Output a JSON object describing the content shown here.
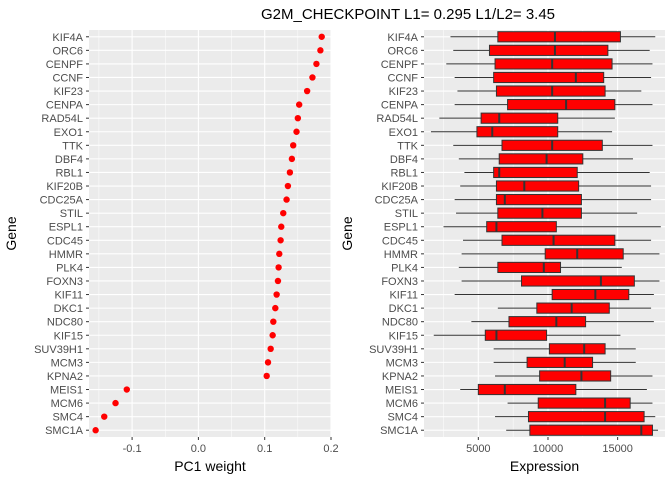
{
  "title": "G2M_CHECKPOINT L1= 0.295 L1/L2= 3.45",
  "colors": {
    "panel_bg": "#ebebeb",
    "grid_major": "#ffffff",
    "point": "#ff0000",
    "box_fill": "#ff0000",
    "box_line": "#333333"
  },
  "chart_data": [
    {
      "type": "scatter",
      "xlabel": "PC1 weight",
      "ylabel": "Gene",
      "xlim": [
        -0.165,
        0.2
      ],
      "xticks": [
        -0.1,
        0.0,
        0.1,
        0.2
      ],
      "xtick_labels": [
        "-0.1",
        "0.0",
        "0.1",
        "0.2"
      ],
      "grid": true,
      "categories": [
        "KIF4A",
        "ORC6",
        "CENPF",
        "CCNF",
        "KIF23",
        "CENPA",
        "RAD54L",
        "EXO1",
        "TTK",
        "DBF4",
        "RBL1",
        "KIF20B",
        "CDC25A",
        "STIL",
        "ESPL1",
        "CDC45",
        "HMMR",
        "PLK4",
        "FOXN3",
        "KIF11",
        "DKC1",
        "NDC80",
        "KIF15",
        "SUV39H1",
        "MCM3",
        "KPNA2",
        "MEIS1",
        "MCM6",
        "SMC4",
        "SMC1A"
      ],
      "values": [
        0.186,
        0.184,
        0.178,
        0.172,
        0.164,
        0.152,
        0.15,
        0.148,
        0.143,
        0.141,
        0.138,
        0.135,
        0.133,
        0.128,
        0.125,
        0.124,
        0.122,
        0.121,
        0.12,
        0.118,
        0.116,
        0.113,
        0.112,
        0.109,
        0.105,
        0.103,
        -0.108,
        -0.125,
        -0.142,
        -0.155
      ]
    },
    {
      "type": "box",
      "xlabel": "Expression",
      "ylabel": "Gene",
      "xlim": [
        1100,
        18400
      ],
      "xticks": [
        5000,
        10000,
        15000
      ],
      "xtick_labels": [
        "5000",
        "10000",
        "15000"
      ],
      "grid": true,
      "categories": [
        "KIF4A",
        "ORC6",
        "CENPF",
        "CCNF",
        "KIF23",
        "CENPA",
        "RAD54L",
        "EXO1",
        "TTK",
        "DBF4",
        "RBL1",
        "KIF20B",
        "CDC25A",
        "STIL",
        "ESPL1",
        "CDC45",
        "HMMR",
        "PLK4",
        "FOXN3",
        "KIF11",
        "DKC1",
        "NDC80",
        "KIF15",
        "SUV39H1",
        "MCM3",
        "KPNA2",
        "MEIS1",
        "MCM6",
        "SMC4",
        "SMC1A"
      ],
      "boxes": [
        {
          "min": 3000,
          "q1": 6400,
          "median": 10500,
          "q3": 15200,
          "max": 17700
        },
        {
          "min": 3200,
          "q1": 5800,
          "median": 10500,
          "q3": 14300,
          "max": 17300
        },
        {
          "min": 2700,
          "q1": 6200,
          "median": 10300,
          "q3": 14600,
          "max": 17500
        },
        {
          "min": 3300,
          "q1": 6100,
          "median": 12000,
          "q3": 14000,
          "max": 17400
        },
        {
          "min": 3500,
          "q1": 6300,
          "median": 10300,
          "q3": 14100,
          "max": 16700
        },
        {
          "min": 3300,
          "q1": 7100,
          "median": 11300,
          "q3": 14800,
          "max": 17500
        },
        {
          "min": 2200,
          "q1": 5200,
          "median": 6500,
          "q3": 10700,
          "max": 14800
        },
        {
          "min": 1600,
          "q1": 4900,
          "median": 6000,
          "q3": 10700,
          "max": 14600
        },
        {
          "min": 3200,
          "q1": 6700,
          "median": 10300,
          "q3": 13900,
          "max": 17500
        },
        {
          "min": 3600,
          "q1": 6500,
          "median": 9900,
          "q3": 12500,
          "max": 16100
        },
        {
          "min": 4000,
          "q1": 6100,
          "median": 6500,
          "q3": 12100,
          "max": 17300
        },
        {
          "min": 3700,
          "q1": 6300,
          "median": 8300,
          "q3": 12200,
          "max": 17400
        },
        {
          "min": 3300,
          "q1": 6300,
          "median": 6900,
          "q3": 12400,
          "max": 17400
        },
        {
          "min": 3400,
          "q1": 6400,
          "median": 9600,
          "q3": 12400,
          "max": 16400
        },
        {
          "min": 2500,
          "q1": 5600,
          "median": 6300,
          "q3": 10600,
          "max": 18100
        },
        {
          "min": 3900,
          "q1": 6700,
          "median": 10400,
          "q3": 14800,
          "max": 17400
        },
        {
          "min": 3800,
          "q1": 9800,
          "median": 12100,
          "q3": 15400,
          "max": 18000
        },
        {
          "min": 3600,
          "q1": 6400,
          "median": 9700,
          "q3": 10900,
          "max": 15300
        },
        {
          "min": 3800,
          "q1": 8100,
          "median": 13800,
          "q3": 16200,
          "max": 18000
        },
        {
          "min": 3300,
          "q1": 10300,
          "median": 13400,
          "q3": 15800,
          "max": 17600
        },
        {
          "min": 6400,
          "q1": 9200,
          "median": 11700,
          "q3": 14400,
          "max": 17400
        },
        {
          "min": 4500,
          "q1": 7200,
          "median": 10600,
          "q3": 12700,
          "max": 17600
        },
        {
          "min": 1800,
          "q1": 5500,
          "median": 6300,
          "q3": 9900,
          "max": 15200
        },
        {
          "min": 6100,
          "q1": 10100,
          "median": 12600,
          "q3": 14100,
          "max": 16300
        },
        {
          "min": 6100,
          "q1": 8500,
          "median": 11200,
          "q3": 13200,
          "max": 16300
        },
        {
          "min": 6200,
          "q1": 9400,
          "median": 12400,
          "q3": 14500,
          "max": 17500
        },
        {
          "min": 3700,
          "q1": 5000,
          "median": 6900,
          "q3": 12000,
          "max": 17100
        },
        {
          "min": 7100,
          "q1": 9300,
          "median": 14100,
          "q3": 15900,
          "max": 17500
        },
        {
          "min": 6200,
          "q1": 8600,
          "median": 14100,
          "q3": 16900,
          "max": 17700
        },
        {
          "min": 7000,
          "q1": 8700,
          "median": 16700,
          "q3": 17500,
          "max": 17900
        }
      ]
    }
  ]
}
